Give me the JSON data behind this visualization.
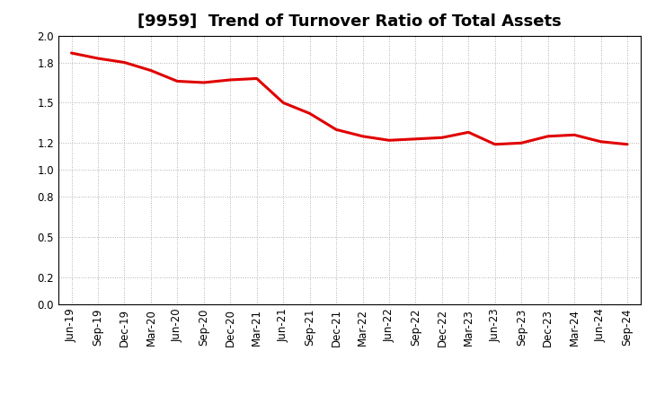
{
  "title": "[9959]  Trend of Turnover Ratio of Total Assets",
  "line_color": "#e00000",
  "background_color": "#ffffff",
  "grid_color": "#999999",
  "ylim": [
    0.0,
    2.0
  ],
  "yticks": [
    0.0,
    0.2,
    0.5,
    0.8,
    1.0,
    1.2,
    1.5,
    1.8,
    2.0
  ],
  "xlabel_labels": [
    "Jun-19",
    "Sep-19",
    "Dec-19",
    "Mar-20",
    "Jun-20",
    "Sep-20",
    "Dec-20",
    "Mar-21",
    "Jun-21",
    "Sep-21",
    "Dec-21",
    "Mar-22",
    "Jun-22",
    "Sep-22",
    "Dec-22",
    "Mar-23",
    "Jun-23",
    "Sep-23",
    "Dec-23",
    "Mar-24",
    "Jun-24",
    "Sep-24"
  ],
  "values": [
    1.87,
    1.83,
    1.8,
    1.74,
    1.66,
    1.65,
    1.67,
    1.68,
    1.5,
    1.42,
    1.3,
    1.25,
    1.22,
    1.23,
    1.24,
    1.28,
    1.19,
    1.2,
    1.25,
    1.26,
    1.21,
    1.19
  ],
  "title_fontsize": 13,
  "tick_fontsize": 8.5,
  "line_width": 2.2
}
